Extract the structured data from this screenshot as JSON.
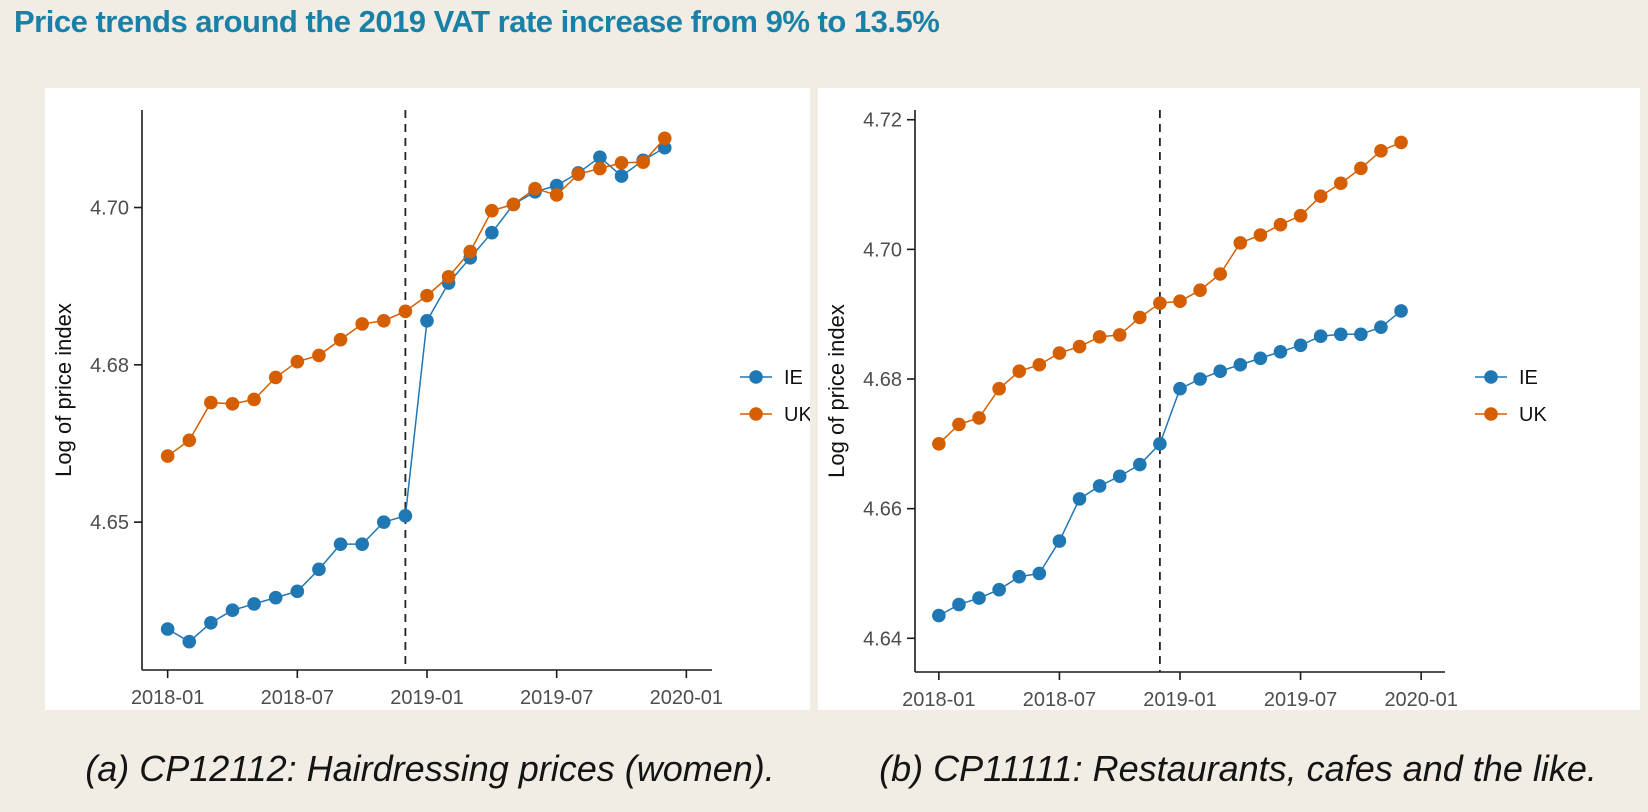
{
  "page": {
    "title": "Price trends around the 2019 VAT rate increase from 9% to 13.5%",
    "title_color": "#1980a8",
    "background_color": "#f2ede4",
    "panel_color": "#ffffff"
  },
  "colors": {
    "ie": "#1f77b4",
    "uk": "#d55e00",
    "axis_text": "#4d4d4d",
    "axis_line": "#1a1a1a",
    "vline": "#222222"
  },
  "chart_data": [
    {
      "id": "a",
      "type": "line",
      "caption": "(a) CP12112: Hairdressing prices (women).",
      "xlabel": "",
      "ylabel": "Log of price index",
      "legend_position": "right",
      "grid": "off",
      "months": [
        "2018-01",
        "2018-02",
        "2018-03",
        "2018-04",
        "2018-05",
        "2018-06",
        "2018-07",
        "2018-08",
        "2018-09",
        "2018-10",
        "2018-11",
        "2018-12",
        "2019-01",
        "2019-02",
        "2019-03",
        "2019-04",
        "2019-05",
        "2019-06",
        "2019-07",
        "2019-08",
        "2019-09",
        "2019-10",
        "2019-11",
        "2019-12"
      ],
      "x_tick_labels": [
        "2018-01",
        "2018-07",
        "2019-01",
        "2019-07",
        "2020-01"
      ],
      "x_tick_months": [
        0,
        6,
        12,
        18,
        24
      ],
      "y_ticks": [
        {
          "value": 4.65,
          "label": "4.65"
        },
        {
          "value": 4.675,
          "label": "4.68"
        },
        {
          "value": 4.7,
          "label": "4.70"
        }
      ],
      "ylim": [
        4.6265,
        4.7155
      ],
      "vline_month": 11,
      "vline_date": "2018-12",
      "series": [
        {
          "name": "IE",
          "color": "#1f77b4",
          "values": [
            4.633,
            4.631,
            4.634,
            4.636,
            4.637,
            4.638,
            4.639,
            4.6425,
            4.6465,
            4.6465,
            4.65,
            4.651,
            4.682,
            4.688,
            4.692,
            4.696,
            4.7005,
            4.7025,
            4.7035,
            4.7055,
            4.708,
            4.705,
            4.7075,
            4.7095
          ]
        },
        {
          "name": "UK",
          "color": "#d55e00",
          "values": [
            4.6605,
            4.663,
            4.669,
            4.6688,
            4.6695,
            4.673,
            4.6755,
            4.6765,
            4.679,
            4.6815,
            4.682,
            4.6835,
            4.686,
            4.689,
            4.693,
            4.6995,
            4.7005,
            4.703,
            4.702,
            4.7053,
            4.7062,
            4.7071,
            4.7072,
            4.711
          ]
        }
      ]
    },
    {
      "id": "b",
      "type": "line",
      "caption": "(b) CP11111: Restaurants, cafes and the like.",
      "xlabel": "",
      "ylabel": "Log of price index",
      "legend_position": "right",
      "grid": "off",
      "months": [
        "2018-01",
        "2018-02",
        "2018-03",
        "2018-04",
        "2018-05",
        "2018-06",
        "2018-07",
        "2018-08",
        "2018-09",
        "2018-10",
        "2018-11",
        "2018-12",
        "2019-01",
        "2019-02",
        "2019-03",
        "2019-04",
        "2019-05",
        "2019-06",
        "2019-07",
        "2019-08",
        "2019-09",
        "2019-10",
        "2019-11",
        "2019-12"
      ],
      "x_tick_labels": [
        "2018-01",
        "2018-07",
        "2019-01",
        "2019-07",
        "2020-01"
      ],
      "x_tick_months": [
        0,
        6,
        12,
        18,
        24
      ],
      "y_ticks": [
        {
          "value": 4.64,
          "label": "4.64"
        },
        {
          "value": 4.66,
          "label": "4.66"
        },
        {
          "value": 4.68,
          "label": "4.68"
        },
        {
          "value": 4.7,
          "label": "4.70"
        },
        {
          "value": 4.72,
          "label": "4.72"
        }
      ],
      "ylim": [
        4.6348,
        4.7215
      ],
      "vline_month": 11,
      "vline_date": "2018-12",
      "series": [
        {
          "name": "IE",
          "color": "#1f77b4",
          "values": [
            4.6435,
            4.6452,
            4.6462,
            4.6475,
            4.6495,
            4.65,
            4.655,
            4.6615,
            4.6635,
            4.665,
            4.6668,
            4.67,
            4.6785,
            4.68,
            4.6812,
            4.6822,
            4.6832,
            4.6842,
            4.6852,
            4.6866,
            4.6869,
            4.6869,
            4.688,
            4.6905
          ]
        },
        {
          "name": "UK",
          "color": "#d55e00",
          "values": [
            4.67,
            4.673,
            4.674,
            4.6785,
            4.6812,
            4.6822,
            4.684,
            4.685,
            4.6865,
            4.6868,
            4.6895,
            4.6917,
            4.692,
            4.6937,
            4.6962,
            4.701,
            4.7022,
            4.7038,
            4.7052,
            4.7082,
            4.7102,
            4.7125,
            4.7152,
            4.7165
          ]
        }
      ]
    }
  ]
}
